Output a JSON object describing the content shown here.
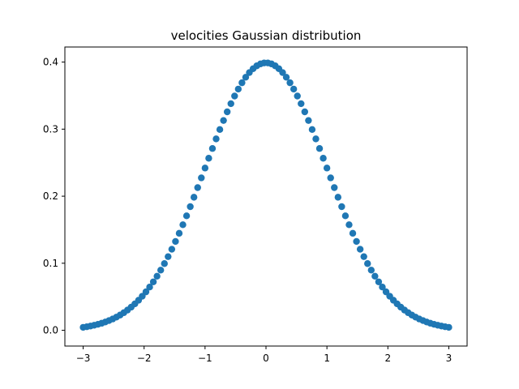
{
  "chart_data": {
    "type": "scatter",
    "title": "velocities Gaussian distribution",
    "xlabel": "",
    "ylabel": "",
    "xlim": [
      -3.3,
      3.3
    ],
    "ylim": [
      -0.0235,
      0.4225
    ],
    "x_ticks": [
      -3,
      -2,
      -1,
      0,
      1,
      2,
      3
    ],
    "x_tick_labels": [
      "−3",
      "−2",
      "−1",
      "0",
      "1",
      "2",
      "3"
    ],
    "y_ticks": [
      0.0,
      0.1,
      0.2,
      0.3,
      0.4
    ],
    "y_tick_labels": [
      "0.0",
      "0.1",
      "0.2",
      "0.3",
      "0.4"
    ],
    "grid": false,
    "marker_color": "#1f77b4",
    "x_range": [
      -3,
      3
    ],
    "point_count": 100,
    "distribution": "standard normal pdf (mean 0, std 1)"
  }
}
